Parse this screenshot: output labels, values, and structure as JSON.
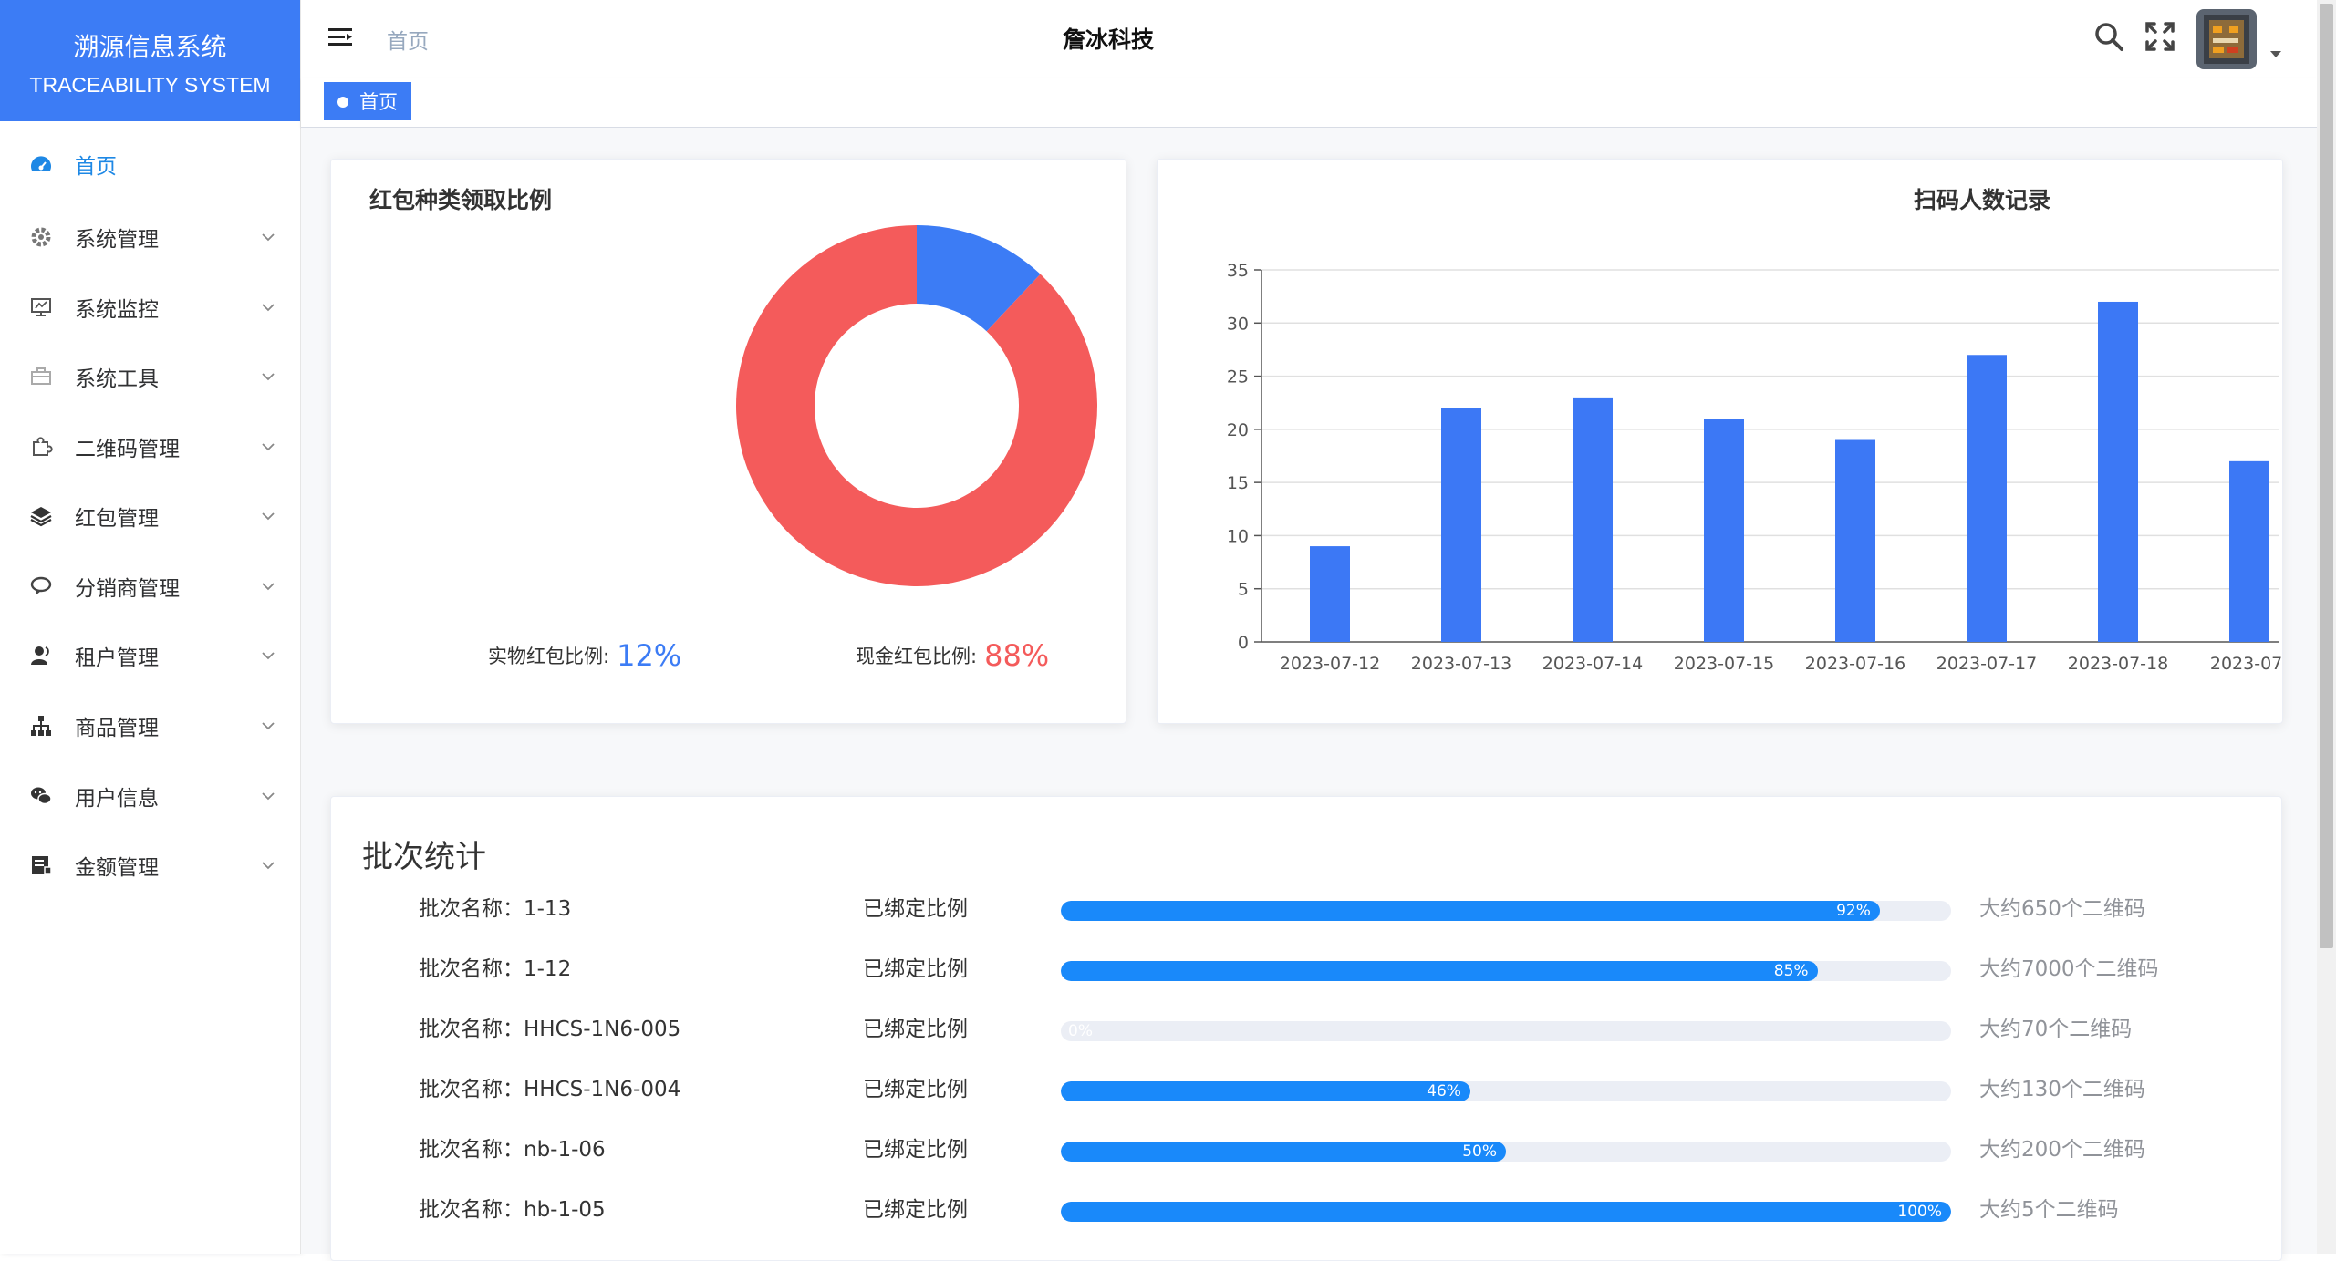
{
  "brand": {
    "title_cn": "溯源信息系统",
    "title_en": "TRACEABILITY SYSTEM",
    "color": "#3c7cf5"
  },
  "sidebar": {
    "items": [
      {
        "label": "首页",
        "icon": "dashboard-icon",
        "active": true,
        "has_children": false
      },
      {
        "label": "系统管理",
        "icon": "gear-icon",
        "active": false,
        "has_children": true
      },
      {
        "label": "系统监控",
        "icon": "monitor-icon",
        "active": false,
        "has_children": true
      },
      {
        "label": "系统工具",
        "icon": "toolbox-icon",
        "active": false,
        "has_children": true
      },
      {
        "label": "二维码管理",
        "icon": "puzzle-icon",
        "active": false,
        "has_children": true
      },
      {
        "label": "红包管理",
        "icon": "layers-icon",
        "active": false,
        "has_children": true
      },
      {
        "label": "分销商管理",
        "icon": "chat-icon",
        "active": false,
        "has_children": true
      },
      {
        "label": "租户管理",
        "icon": "user-icon",
        "active": false,
        "has_children": true
      },
      {
        "label": "商品管理",
        "icon": "tree-icon",
        "active": false,
        "has_children": true
      },
      {
        "label": "用户信息",
        "icon": "wechat-icon",
        "active": false,
        "has_children": true
      },
      {
        "label": "金额管理",
        "icon": "ledger-icon",
        "active": false,
        "has_children": true
      }
    ]
  },
  "navbar": {
    "breadcrumb": "首页",
    "company": "詹冰科技"
  },
  "tags": [
    {
      "label": "首页",
      "active": true
    }
  ],
  "pie_card": {
    "title": "红包种类领取比例",
    "legend": [
      {
        "label": "实物红包比例:",
        "value": "12%",
        "color": "#3c7cf5"
      },
      {
        "label": "现金红包比例:",
        "value": "88%",
        "color": "#f45b5b"
      }
    ]
  },
  "bar_card": {
    "title": "扫码人数记录"
  },
  "chart_data": [
    {
      "type": "pie",
      "donut": true,
      "title": "红包种类领取比例",
      "slices": [
        {
          "name": "实物红包",
          "value": 12,
          "color": "#3c7cf5"
        },
        {
          "name": "现金红包",
          "value": 88,
          "color": "#f45b5b"
        }
      ]
    },
    {
      "type": "bar",
      "title": "扫码人数记录",
      "categories": [
        "2023-07-12",
        "2023-07-13",
        "2023-07-14",
        "2023-07-15",
        "2023-07-16",
        "2023-07-17",
        "2023-07-18",
        "2023-07-"
      ],
      "values": [
        9,
        22,
        23,
        21,
        19,
        27,
        32,
        17
      ],
      "ylim": [
        0,
        35
      ],
      "yticks": [
        0,
        5,
        10,
        15,
        20,
        25,
        30,
        35
      ],
      "grid": true,
      "bar_color": "#3c78f5"
    }
  ],
  "batch": {
    "title": "批次统计",
    "rows": [
      {
        "name": "批次名称：1-13",
        "label": "已绑定比例",
        "percent": 92,
        "percent_text": "92%",
        "note": "大约650个二维码"
      },
      {
        "name": "批次名称：1-12",
        "label": "已绑定比例",
        "percent": 85,
        "percent_text": "85%",
        "note": "大约7000个二维码"
      },
      {
        "name": "批次名称：HHCS-1N6-005",
        "label": "已绑定比例",
        "percent": 0,
        "percent_text": "0%",
        "note": "大约70个二维码"
      },
      {
        "name": "批次名称：HHCS-1N6-004",
        "label": "已绑定比例",
        "percent": 46,
        "percent_text": "46%",
        "note": "大约130个二维码"
      },
      {
        "name": "批次名称：nb-1-06",
        "label": "已绑定比例",
        "percent": 50,
        "percent_text": "50%",
        "note": "大约200个二维码"
      },
      {
        "name": "批次名称：hb-1-05",
        "label": "已绑定比例",
        "percent": 100,
        "percent_text": "100%",
        "note": "大约5个二维码"
      }
    ]
  }
}
